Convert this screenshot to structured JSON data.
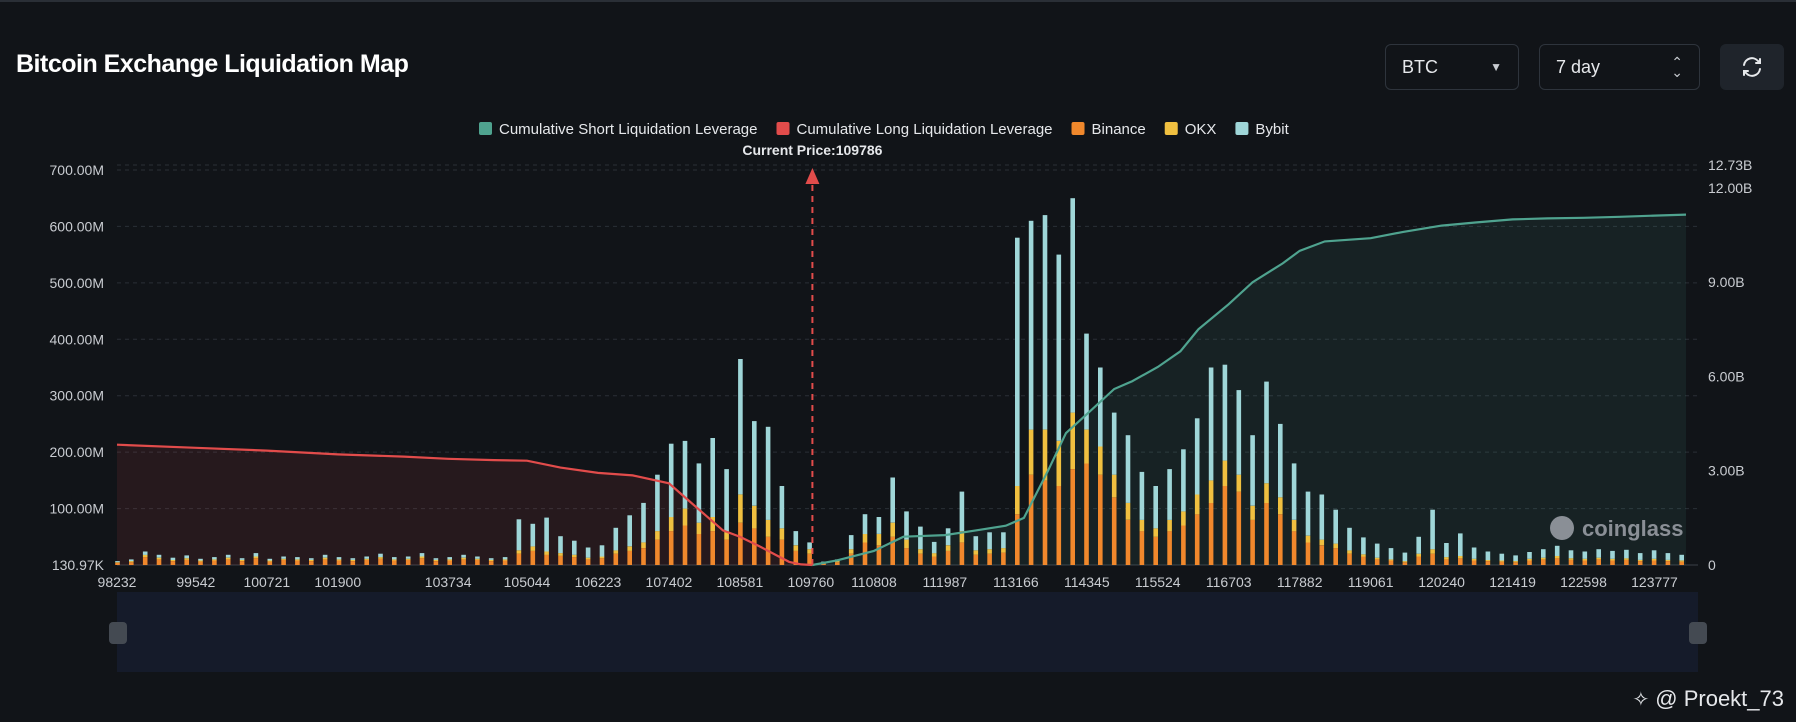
{
  "header": {
    "title": "Bitcoin Exchange Liquidation Map",
    "coin_select": "BTC",
    "range_select": "7 day"
  },
  "watermark": {
    "handle": "@ Proekt_73",
    "brand": "coinglass"
  },
  "colors": {
    "short": "#4fa38f",
    "long": "#e24c4b",
    "binance": "#f0882c",
    "okx": "#f0c040",
    "bybit": "#9fd6d8",
    "price_line": "#e24c4b"
  },
  "chart_data": {
    "type": "bar",
    "legend": [
      "Cumulative Short Liquidation Leverage",
      "Cumulative Long Liquidation Leverage",
      "Binance",
      "OKX",
      "Bybit"
    ],
    "current_price_label": "Current Price:109786",
    "current_price": 109786,
    "x_tick_labels": [
      "98232",
      "99542",
      "100721",
      "101900",
      "103734",
      "105044",
      "106223",
      "107402",
      "108581",
      "109760",
      "110808",
      "111987",
      "113166",
      "114345",
      "115524",
      "116703",
      "117882",
      "119061",
      "120240",
      "121419",
      "122598",
      "123777"
    ],
    "x_range": [
      98232,
      124500
    ],
    "y_left_ticks": [
      "130.97K",
      "100.00M",
      "200.00M",
      "300.00M",
      "400.00M",
      "500.00M",
      "600.00M",
      "700.00M"
    ],
    "y_left_range": [
      0,
      700
    ],
    "y_left_unit": "M",
    "y_right_ticks": [
      "0",
      "3.00B",
      "6.00B",
      "9.00B",
      "12.00B",
      "12.73B"
    ],
    "y_right_range": [
      0,
      12.73
    ],
    "y_right_unit": "B",
    "exchange_bars": {
      "x": [
        98240,
        98470,
        98700,
        98930,
        99160,
        99390,
        99620,
        99850,
        100080,
        100310,
        100540,
        100770,
        101000,
        101230,
        101460,
        101690,
        101920,
        102150,
        102380,
        102610,
        102840,
        103070,
        103300,
        103530,
        103760,
        103990,
        104220,
        104450,
        104680,
        104910,
        105140,
        105370,
        105600,
        105830,
        106060,
        106290,
        106520,
        106750,
        106980,
        107210,
        107440,
        107670,
        107900,
        108130,
        108360,
        108590,
        108820,
        109050,
        109280,
        109510,
        109740,
        109970,
        110200,
        110430,
        110660,
        110890,
        111120,
        111350,
        111580,
        111810,
        112040,
        112270,
        112500,
        112730,
        112960,
        113190,
        113420,
        113650,
        113880,
        114110,
        114340,
        114570,
        114800,
        115030,
        115260,
        115490,
        115720,
        115950,
        116180,
        116410,
        116640,
        116870,
        117100,
        117330,
        117560,
        117790,
        118020,
        118250,
        118480,
        118710,
        118940,
        119170,
        119400,
        119630,
        119860,
        120090,
        120320,
        120550,
        120780,
        121010,
        121240,
        121470,
        121700,
        121930,
        122160,
        122390,
        122620,
        122850,
        123080,
        123310,
        123540,
        123770,
        124000,
        124230
      ],
      "series": [
        {
          "name": "Binance",
          "values": [
            4,
            5,
            14,
            10,
            7,
            9,
            6,
            8,
            10,
            7,
            12,
            6,
            9,
            8,
            7,
            10,
            8,
            7,
            9,
            11,
            8,
            9,
            12,
            7,
            8,
            10,
            9,
            7,
            8,
            20,
            25,
            18,
            16,
            14,
            10,
            12,
            20,
            25,
            30,
            45,
            60,
            70,
            55,
            60,
            45,
            75,
            65,
            50,
            45,
            25,
            20,
            3,
            5,
            20,
            40,
            35,
            50,
            30,
            20,
            15,
            25,
            40,
            18,
            20,
            22,
            90,
            160,
            150,
            140,
            170,
            180,
            160,
            120,
            80,
            60,
            50,
            60,
            70,
            90,
            110,
            140,
            130,
            80,
            110,
            90,
            60,
            40,
            35,
            30,
            20,
            15,
            10,
            8,
            5,
            15,
            20,
            10,
            12,
            8,
            7,
            6,
            5,
            8,
            10,
            12,
            9,
            8,
            10,
            8,
            9,
            7,
            8,
            7,
            6
          ]
        },
        {
          "name": "OKX",
          "values": [
            1,
            2,
            4,
            3,
            2,
            3,
            2,
            2,
            3,
            2,
            3,
            2,
            2,
            2,
            2,
            3,
            2,
            2,
            2,
            3,
            2,
            2,
            3,
            2,
            2,
            3,
            2,
            2,
            2,
            6,
            8,
            6,
            5,
            4,
            3,
            3,
            6,
            8,
            10,
            15,
            25,
            30,
            20,
            25,
            15,
            50,
            40,
            30,
            20,
            10,
            8,
            1,
            2,
            8,
            15,
            20,
            25,
            15,
            8,
            6,
            10,
            20,
            8,
            8,
            8,
            50,
            80,
            90,
            80,
            100,
            60,
            50,
            40,
            30,
            20,
            15,
            20,
            25,
            35,
            40,
            45,
            30,
            25,
            35,
            30,
            20,
            12,
            10,
            8,
            6,
            4,
            3,
            2,
            2,
            5,
            8,
            4,
            4,
            3,
            2,
            2,
            2,
            3,
            3,
            4,
            3,
            3,
            3,
            3,
            3,
            2,
            3,
            2,
            2
          ]
        },
        {
          "name": "Bybit",
          "values": [
            2,
            3,
            6,
            5,
            4,
            5,
            3,
            4,
            5,
            3,
            6,
            3,
            4,
            4,
            3,
            5,
            4,
            3,
            4,
            6,
            4,
            4,
            6,
            3,
            4,
            5,
            4,
            3,
            4,
            55,
            40,
            60,
            30,
            25,
            18,
            20,
            40,
            55,
            70,
            100,
            130,
            120,
            105,
            140,
            110,
            240,
            150,
            165,
            75,
            25,
            12,
            2,
            3,
            25,
            35,
            30,
            80,
            50,
            40,
            20,
            30,
            70,
            25,
            30,
            28,
            440,
            370,
            380,
            330,
            380,
            170,
            140,
            110,
            120,
            85,
            75,
            90,
            110,
            135,
            200,
            170,
            150,
            125,
            180,
            130,
            100,
            78,
            80,
            60,
            40,
            30,
            25,
            20,
            15,
            30,
            70,
            25,
            40,
            20,
            15,
            12,
            10,
            12,
            15,
            18,
            14,
            13,
            15,
            14,
            15,
            12,
            15,
            12,
            10
          ]
        }
      ]
    },
    "cumulative_long": {
      "x": [
        98232,
        99542,
        100721,
        101900,
        103000,
        103734,
        104500,
        105044,
        105600,
        106223,
        106800,
        107402,
        107700,
        108000,
        108300,
        108581,
        108900,
        109200,
        109400,
        109600,
        109786
      ],
      "y": [
        3.83,
        3.73,
        3.64,
        3.52,
        3.45,
        3.38,
        3.34,
        3.32,
        3.1,
        2.93,
        2.85,
        2.6,
        2.1,
        1.6,
        1.1,
        0.9,
        0.6,
        0.3,
        0.1,
        0.02,
        0
      ]
    },
    "cumulative_short": {
      "x": [
        109786,
        110200,
        110808,
        111300,
        111987,
        112500,
        113000,
        113300,
        113700,
        114000,
        114345,
        114800,
        115100,
        115524,
        115900,
        116200,
        116703,
        117100,
        117600,
        117882,
        118300,
        119061,
        119600,
        120240,
        120800,
        121419,
        122000,
        122598,
        123200,
        123777,
        124300
      ],
      "y": [
        0,
        0.15,
        0.45,
        0.9,
        0.95,
        1.1,
        1.25,
        1.5,
        3.0,
        4.2,
        4.8,
        5.6,
        5.85,
        6.3,
        6.8,
        7.5,
        8.3,
        9.0,
        9.6,
        10.0,
        10.3,
        10.4,
        10.6,
        10.8,
        10.9,
        11.0,
        11.03,
        11.05,
        11.08,
        11.12,
        11.15
      ]
    },
    "grid": true,
    "legend_position": "top-center"
  }
}
